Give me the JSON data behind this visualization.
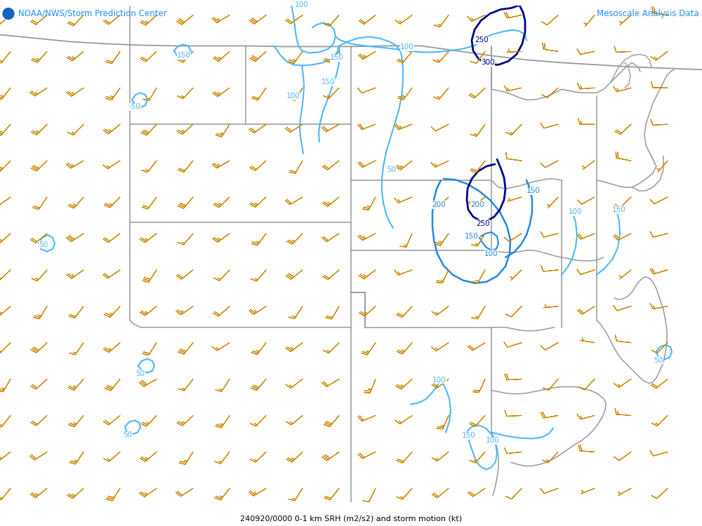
{
  "title_left": "NOAA/NWS/Storm Prediction Center",
  "title_right": "Mesoscale Analysis Data",
  "subtitle": "240920/0000 0-1 km SRH (m2/s2) and storm motion (kt)",
  "title_color": "#1E90FF",
  "subtitle_color": "#000000",
  "bg_color": "#FFFFFF",
  "light_blue": "#4DB8FF",
  "medium_blue": "#2288DD",
  "dark_blue": "#00008B",
  "barb_color": "#CC8800",
  "state_color": "#999999",
  "fig_width": 10.0,
  "fig_height": 7.5,
  "dpi": 100
}
